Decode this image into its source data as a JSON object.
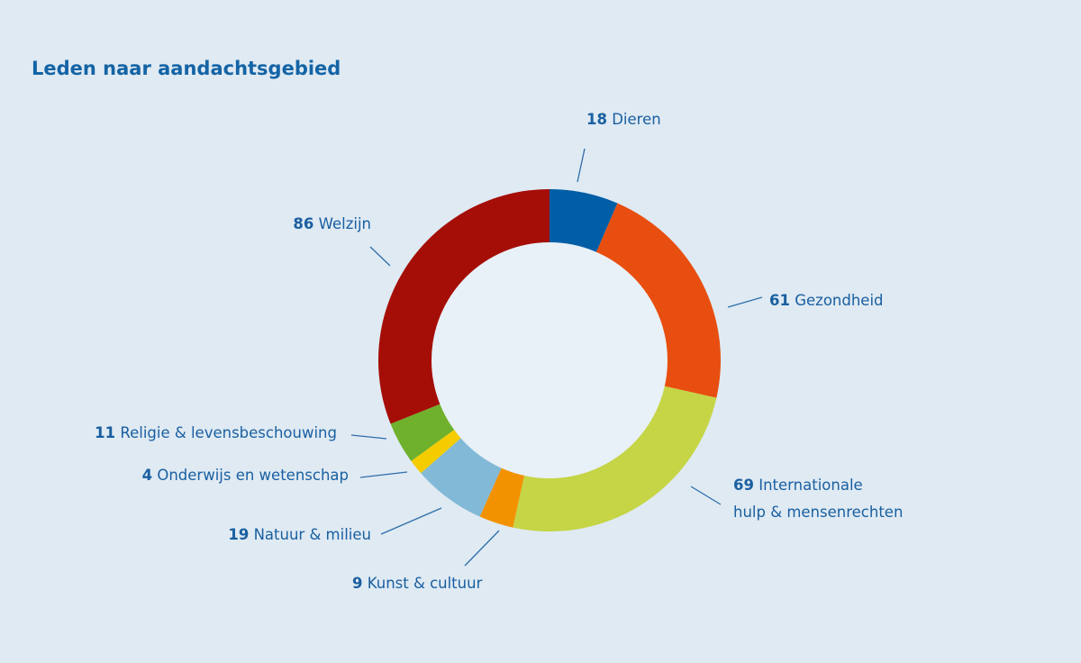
{
  "chart_data": {
    "type": "pie",
    "variant": "donut",
    "title": "Leden naar aandachtsgebied",
    "slices": [
      {
        "label": "Dieren",
        "value": 18,
        "color": "#005ea6"
      },
      {
        "label": "Gezondheid",
        "value": 61,
        "color": "#e84e0f"
      },
      {
        "label": "Internationale hulp & mensenrechten",
        "label_line1": "Internationale",
        "label_line2": "hulp & mensenrechten",
        "value": 69,
        "color": "#c5d546"
      },
      {
        "label": "Kunst & cultuur",
        "value": 9,
        "color": "#f39200"
      },
      {
        "label": "Natuur & milieu",
        "value": 19,
        "color": "#82b9d7"
      },
      {
        "label": "Onderwijs en wetenschap",
        "value": 4,
        "color": "#f4cc00"
      },
      {
        "label": "Religie & levensbeschouwing",
        "value": 11,
        "color": "#6fb02c"
      },
      {
        "label": "Welzijn",
        "value": 86,
        "color": "#a50e07"
      }
    ],
    "direction": "clockwise from top",
    "legend": "none (direct labels)"
  },
  "colors": {
    "background": "#dfeaf3",
    "hole": "#e8f1f7",
    "text": "#1a5fa0",
    "title": "#1464a5"
  }
}
